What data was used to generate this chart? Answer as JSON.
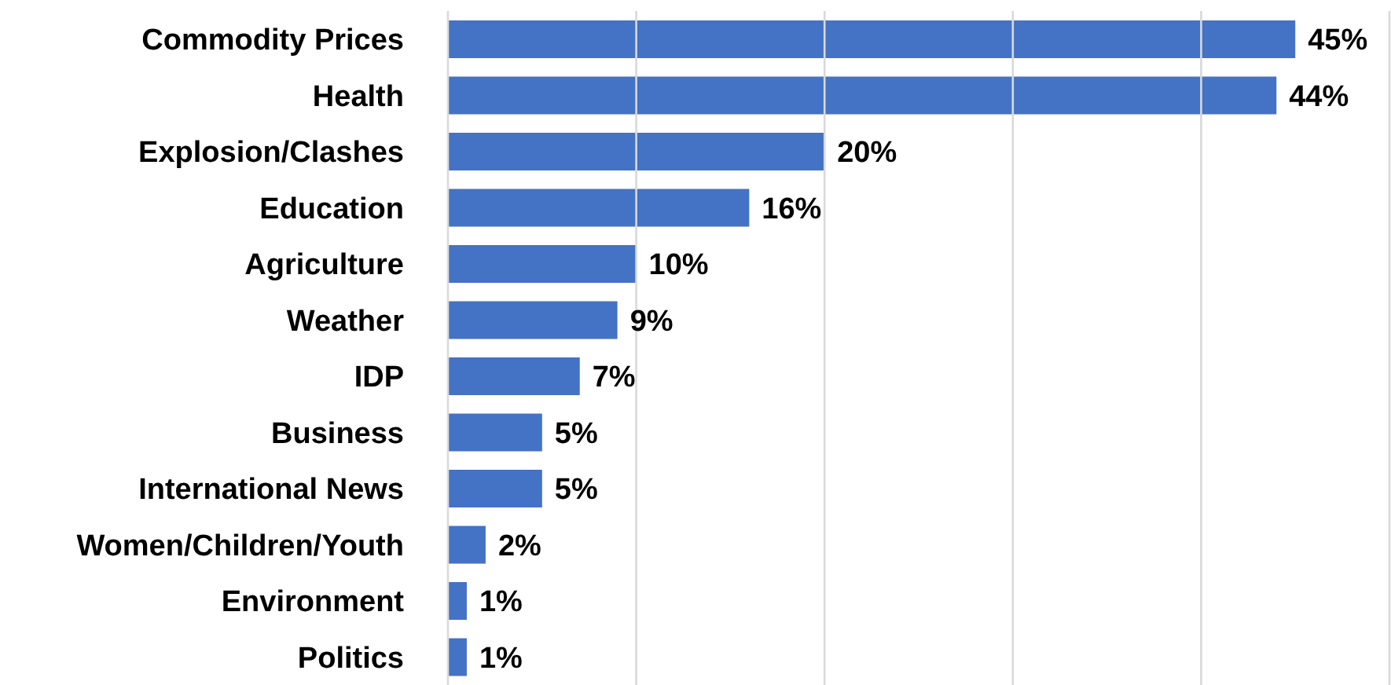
{
  "chart_data": {
    "type": "bar",
    "orientation": "horizontal",
    "categories": [
      "Commodity Prices",
      "Health",
      "Explosion/Clashes",
      "Education",
      "Agriculture",
      "Weather",
      "IDP",
      "Business",
      "International News",
      "Women/Children/Youth",
      "Environment",
      "Politics"
    ],
    "values": [
      45,
      44,
      20,
      16,
      10,
      9,
      7,
      5,
      5,
      2,
      1,
      1
    ],
    "value_labels": [
      "45%",
      "44%",
      "20%",
      "16%",
      "10%",
      "9%",
      "7%",
      "5%",
      "5%",
      "2%",
      "1%",
      "1%"
    ],
    "color": "#4472c4",
    "xlim": [
      0,
      50
    ],
    "xticks": [
      {
        "value": 0,
        "label": null
      },
      {
        "value": 10,
        "label": null
      },
      {
        "value": 20,
        "label": null
      },
      {
        "value": 30,
        "label": null
      },
      {
        "value": 40,
        "label": null
      },
      {
        "value": 50,
        "label": null
      }
    ],
    "grid": "x",
    "tick_labels": "y"
  }
}
